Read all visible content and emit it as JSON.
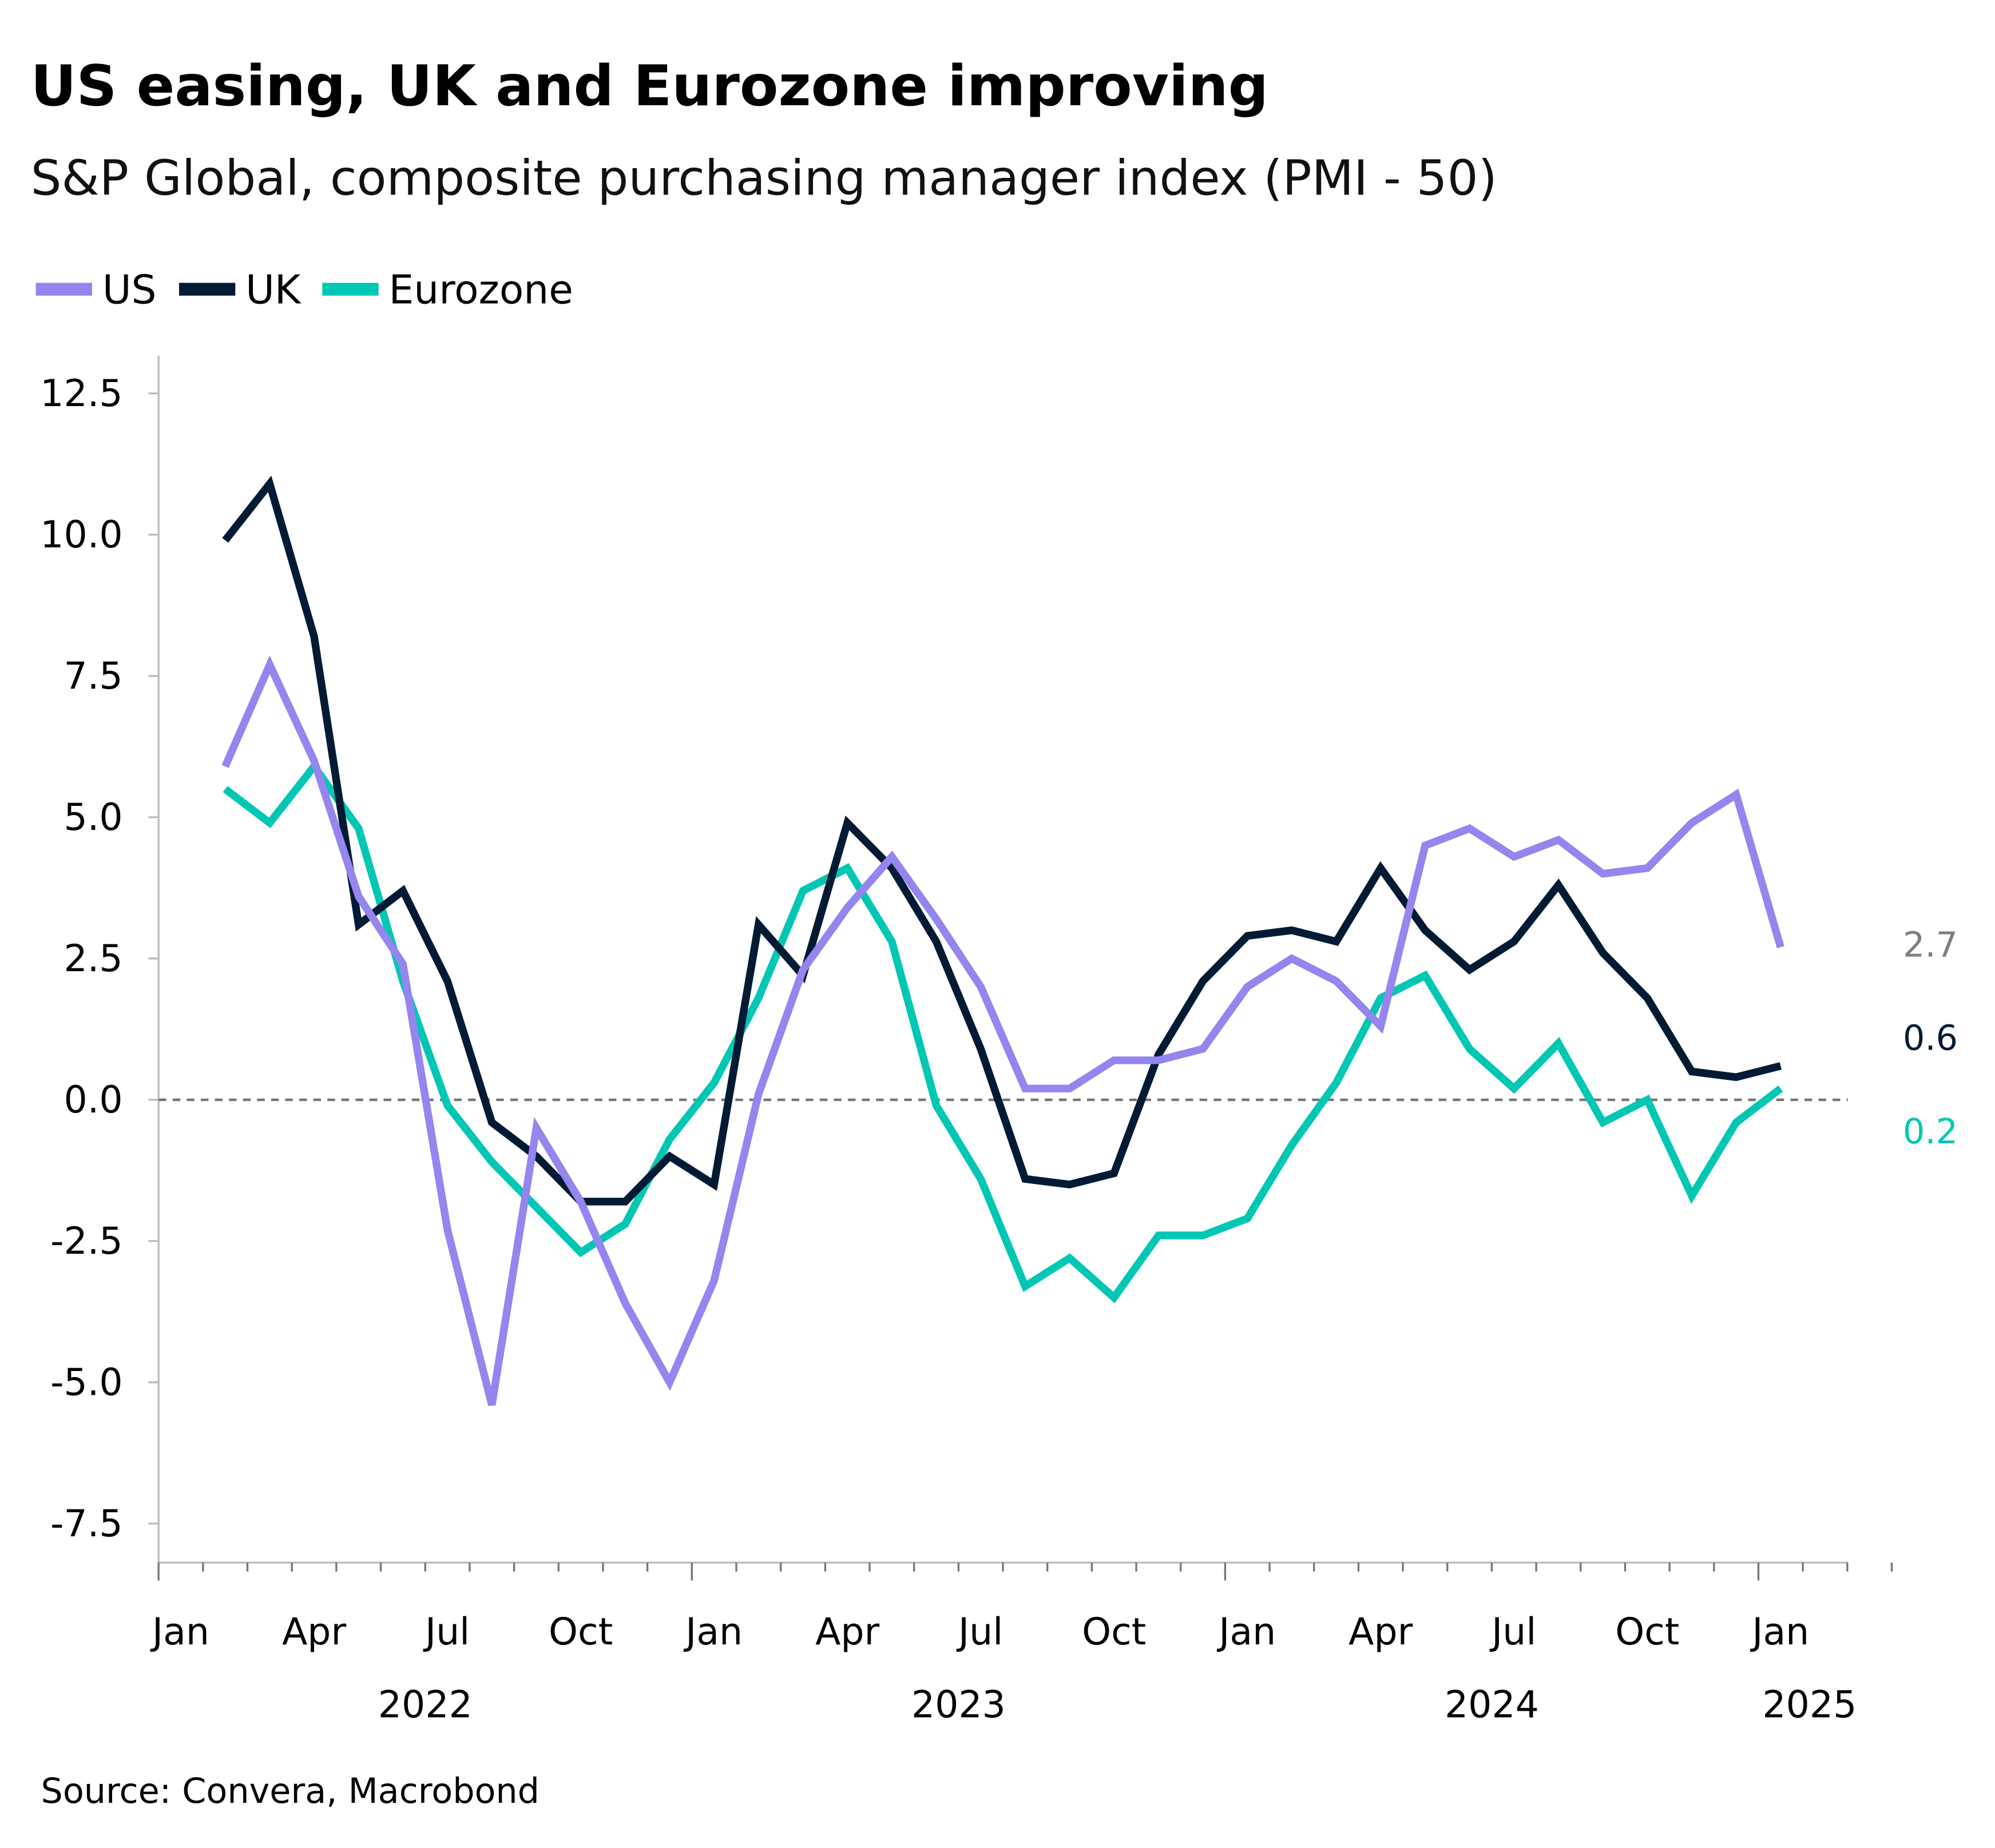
{
  "chart_data": {
    "type": "line",
    "title": "US easing, UK and Eurozone improving",
    "subtitle": "S&P Global, composite purchasing manager index (PMI - 50)",
    "source": "Source: Convera, Macrobond",
    "xlabel": "",
    "ylabel": "",
    "ylim": [
      -7.5,
      12.5
    ],
    "yticks": [
      "12.5",
      "10.0",
      "7.5",
      "5.0",
      "2.5",
      "0.0",
      "-2.5",
      "-5.0",
      "-7.5"
    ],
    "ytick_values": [
      12.5,
      10,
      7.5,
      5,
      2.5,
      0,
      -2.5,
      -5,
      -7.5
    ],
    "xlim": [
      "2022-01",
      "2025-03"
    ],
    "xtick_months": [
      "Jan",
      "Apr",
      "Jul",
      "Oct",
      "Jan",
      "Apr",
      "Jul",
      "Oct",
      "Jan",
      "Apr",
      "Jul",
      "Oct",
      "Jan"
    ],
    "xtick_dates": [
      "2022-01",
      "2022-04",
      "2022-07",
      "2022-10",
      "2023-01",
      "2023-04",
      "2023-07",
      "2023-10",
      "2024-01",
      "2024-04",
      "2024-07",
      "2024-10",
      "2025-01"
    ],
    "year_labels": [
      "2022",
      "2023",
      "2024",
      "2025"
    ],
    "reference_line": 0,
    "grid": false,
    "legend_placement": "top-left",
    "x": [
      "2022-02",
      "2022-03",
      "2022-04",
      "2022-05",
      "2022-06",
      "2022-07",
      "2022-08",
      "2022-09",
      "2022-10",
      "2022-11",
      "2022-12",
      "2023-01",
      "2023-02",
      "2023-03",
      "2023-04",
      "2023-05",
      "2023-06",
      "2023-07",
      "2023-08",
      "2023-09",
      "2023-10",
      "2023-11",
      "2023-12",
      "2024-01",
      "2024-02",
      "2024-03",
      "2024-04",
      "2024-05",
      "2024-06",
      "2024-07",
      "2024-08",
      "2024-09",
      "2024-10",
      "2024-11",
      "2024-12",
      "2025-01"
    ],
    "series": [
      {
        "name": "US",
        "color": "#9585EE",
        "end_label": "2.7",
        "end_label_color": "#7f7f7f",
        "values": [
          5.9,
          7.7,
          6.0,
          3.6,
          2.4,
          -2.3,
          -5.4,
          -0.5,
          -1.8,
          -3.6,
          -5.0,
          -3.2,
          0.1,
          2.3,
          3.4,
          4.3,
          3.2,
          2.0,
          0.2,
          0.2,
          0.7,
          0.7,
          0.9,
          2.0,
          2.5,
          2.1,
          1.3,
          4.5,
          4.8,
          4.3,
          4.6,
          4.0,
          4.1,
          4.9,
          5.4,
          2.7
        ]
      },
      {
        "name": "UK",
        "color": "#001B33",
        "end_label": "0.6",
        "end_label_color": "#001B33",
        "values": [
          9.9,
          10.9,
          8.2,
          3.1,
          3.7,
          2.1,
          -0.4,
          -1.0,
          -1.8,
          -1.8,
          -1.0,
          -1.5,
          3.1,
          2.2,
          4.9,
          4.1,
          2.8,
          0.9,
          -1.4,
          -1.5,
          -1.3,
          0.8,
          2.1,
          2.9,
          3.0,
          2.8,
          4.1,
          3.0,
          2.3,
          2.8,
          3.8,
          2.6,
          1.8,
          0.5,
          0.4,
          0.6
        ]
      },
      {
        "name": "Eurozone",
        "color": "#00C7B4",
        "end_label": "0.2",
        "end_label_color": "#00C7B4",
        "values": [
          5.5,
          4.9,
          5.9,
          4.8,
          2.1,
          -0.1,
          -1.1,
          -1.9,
          -2.7,
          -2.2,
          -0.7,
          0.3,
          1.8,
          3.7,
          4.1,
          2.8,
          -0.1,
          -1.4,
          -3.3,
          -2.8,
          -3.5,
          -2.4,
          -2.4,
          -2.1,
          -0.8,
          0.3,
          1.8,
          2.2,
          0.9,
          0.2,
          1.0,
          -0.4,
          0.0,
          -1.7,
          -0.4,
          0.2
        ]
      }
    ]
  }
}
